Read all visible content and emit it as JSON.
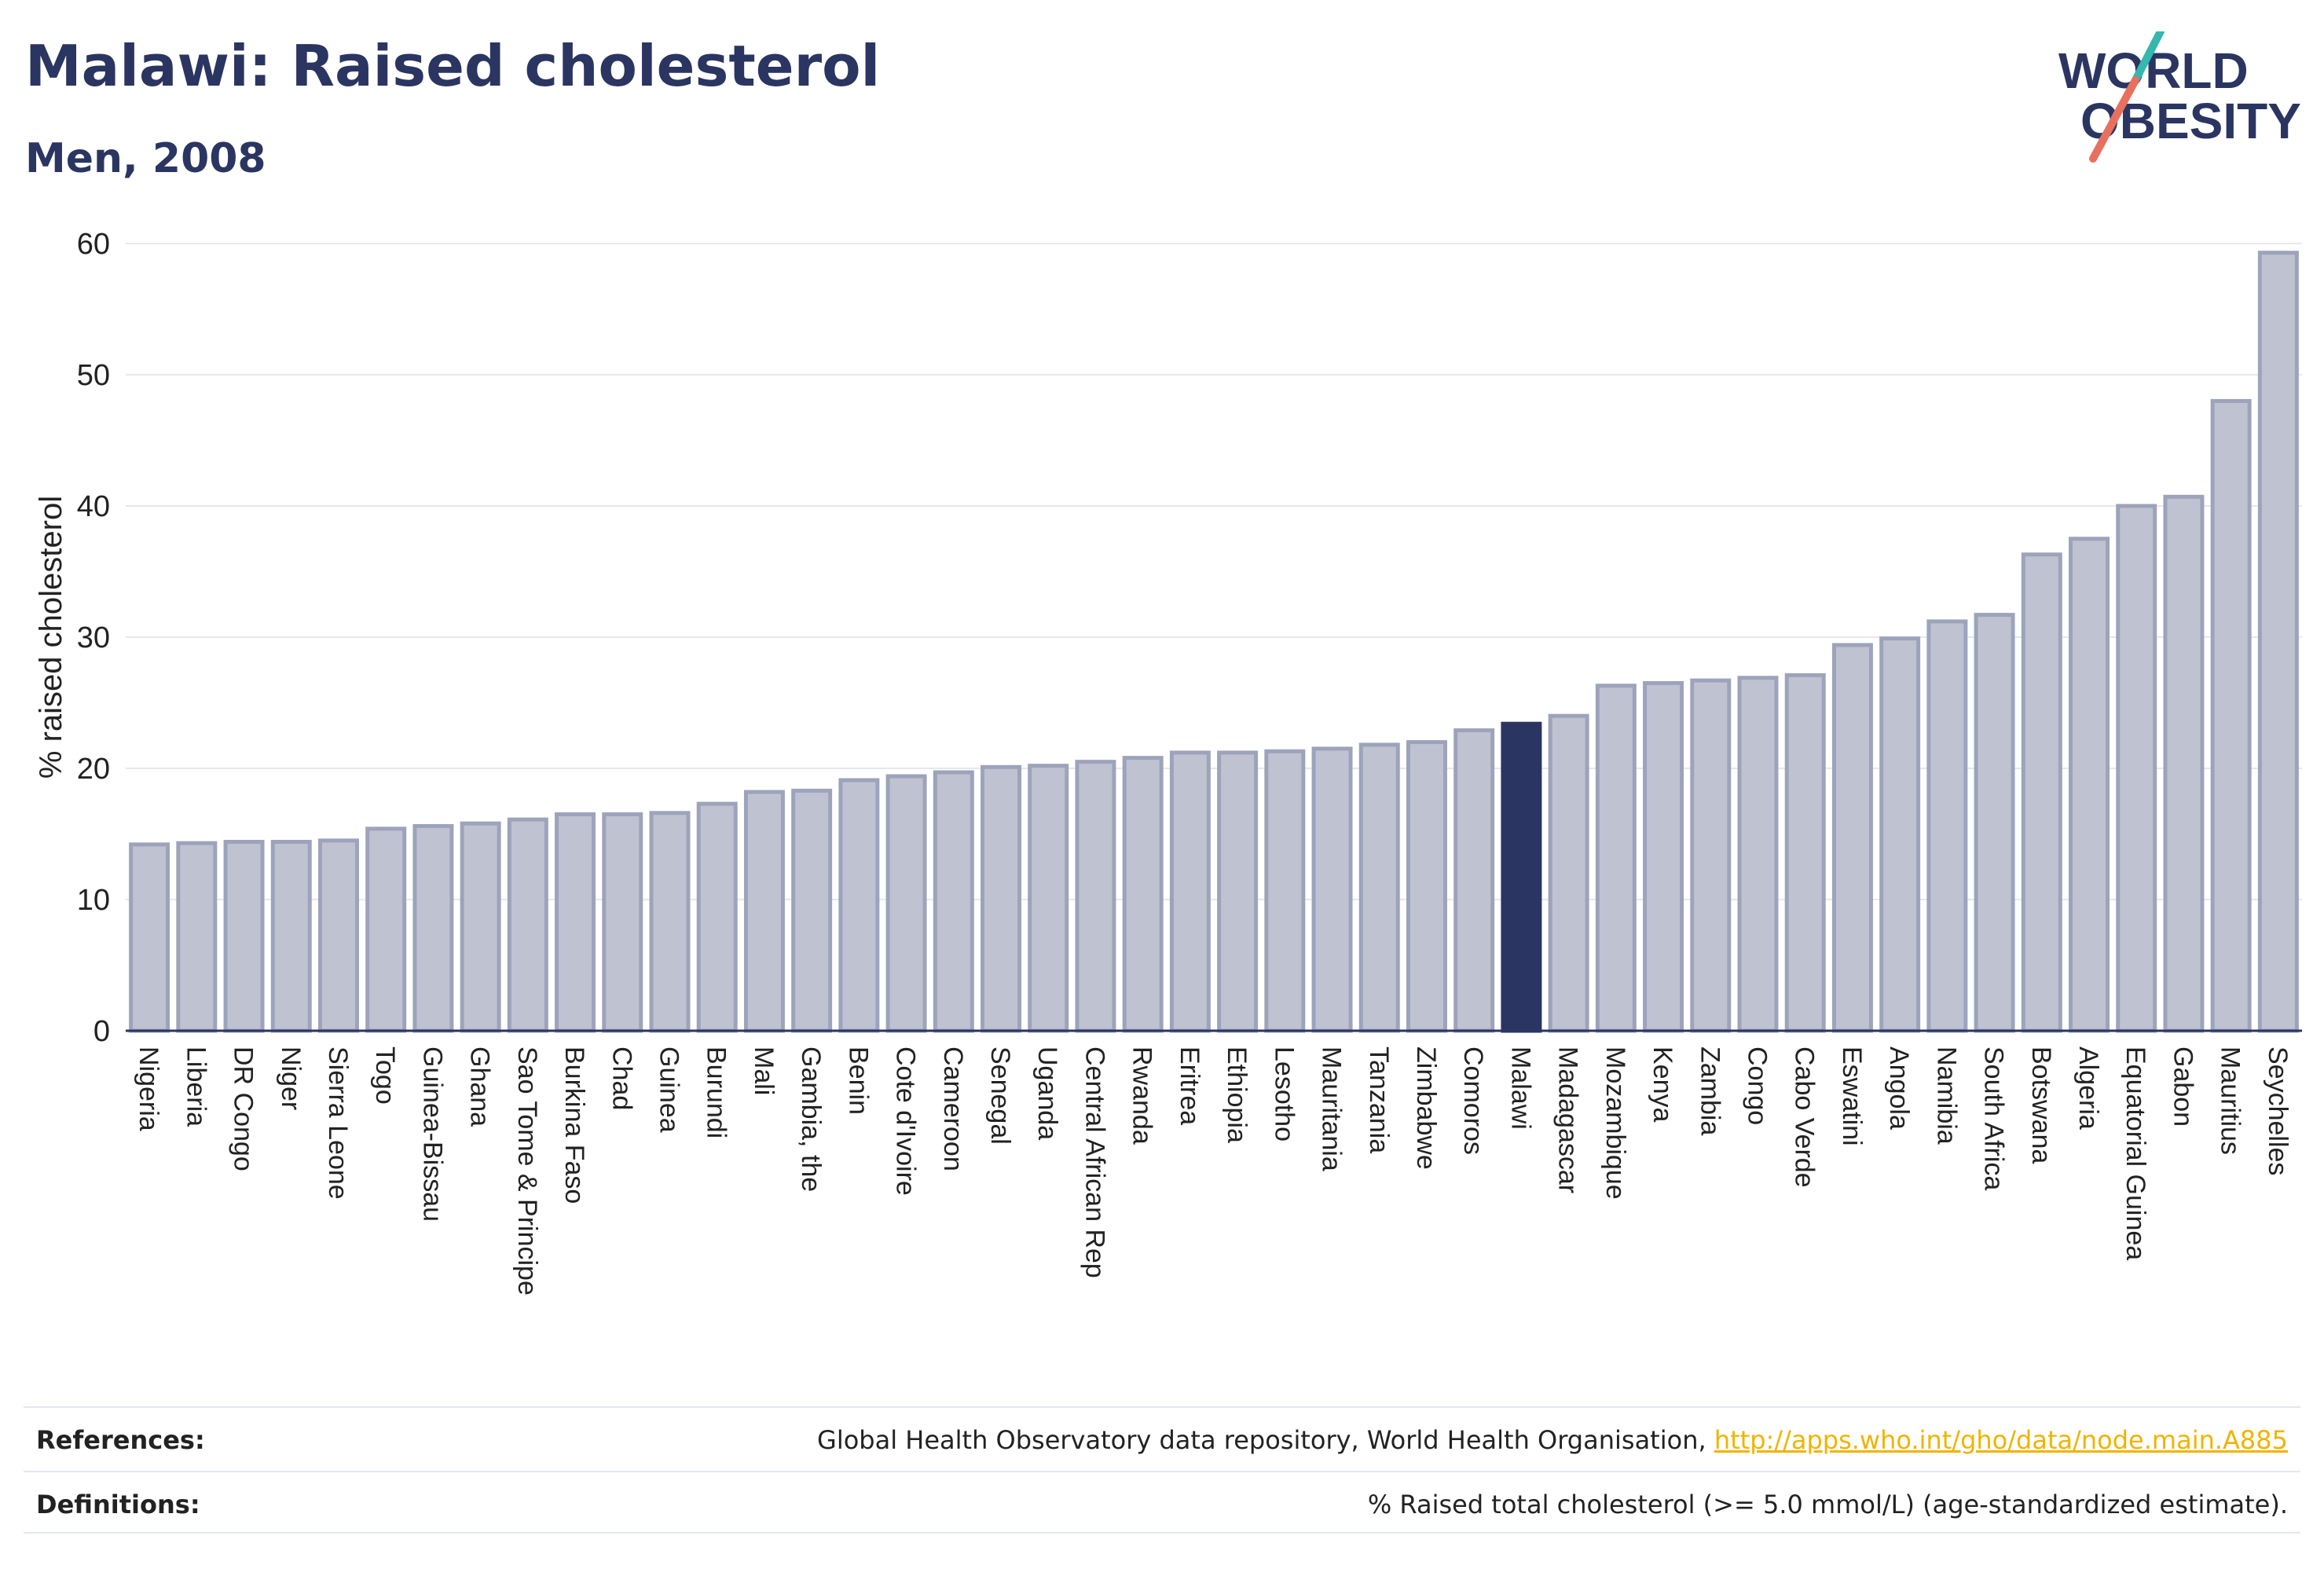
{
  "header": {
    "title": "Malawi: Raised cholesterol",
    "subtitle": "Men, 2008"
  },
  "logo": {
    "line1": "WORLD",
    "line2": "OBESITY"
  },
  "footer": {
    "references_label": "References:",
    "references_text": "Global Health Observatory data repository, World Health Organisation, ",
    "references_link": "http://apps.who.int/gho/data/node.main.A885",
    "definitions_label": "Definitions:",
    "definitions_text": "% Raised total cholesterol (>= 5.0 mmol/L) (age-standardized estimate)."
  },
  "chart_data": {
    "type": "bar",
    "ylabel": "% raised cholesterol",
    "xlabel": "",
    "ylim": [
      0,
      60
    ],
    "yticks": [
      0,
      10,
      20,
      30,
      40,
      50,
      60
    ],
    "grid": true,
    "highlight": "Malawi",
    "colors": {
      "bar": "#bfc3d1",
      "bar_border": "#9da3ba",
      "highlight": "#2b3561",
      "grid": "#e6e8ee",
      "axis": "#2b3561"
    },
    "categories": [
      "Nigeria",
      "Liberia",
      "DR Congo",
      "Niger",
      "Sierra Leone",
      "Togo",
      "Guinea-Bissau",
      "Ghana",
      "Sao Tome & Principe",
      "Burkina Faso",
      "Chad",
      "Guinea",
      "Burundi",
      "Mali",
      "Gambia, the",
      "Benin",
      "Cote d'Ivoire",
      "Cameroon",
      "Senegal",
      "Uganda",
      "Central African Rep",
      "Rwanda",
      "Eritrea",
      "Ethiopia",
      "Lesotho",
      "Mauritania",
      "Tanzania",
      "Zimbabwe",
      "Comoros",
      "Malawi",
      "Madagascar",
      "Mozambique",
      "Kenya",
      "Zambia",
      "Congo",
      "Cabo Verde",
      "Eswatini",
      "Angola",
      "Namibia",
      "South Africa",
      "Botswana",
      "Algeria",
      "Equatorial Guinea",
      "Gabon",
      "Mauritius",
      "Seychelles"
    ],
    "values": [
      14.2,
      14.3,
      14.4,
      14.4,
      14.5,
      15.4,
      15.6,
      15.8,
      16.1,
      16.5,
      16.5,
      16.6,
      17.3,
      18.2,
      18.3,
      19.1,
      19.4,
      19.7,
      20.1,
      20.2,
      20.5,
      20.8,
      21.2,
      21.2,
      21.3,
      21.5,
      21.8,
      22.0,
      22.9,
      23.4,
      24.0,
      26.3,
      26.5,
      26.7,
      26.9,
      27.1,
      29.4,
      29.9,
      31.2,
      31.7,
      36.3,
      37.5,
      40.0,
      40.7,
      48.0,
      59.3
    ]
  }
}
